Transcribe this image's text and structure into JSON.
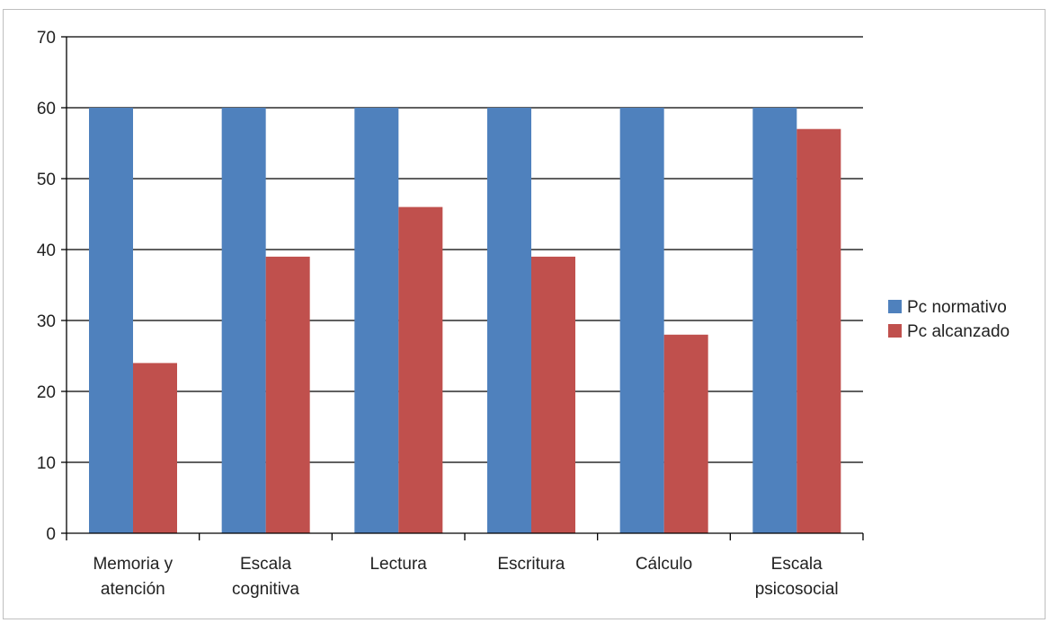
{
  "chart_data": {
    "type": "bar",
    "categories": [
      [
        "Memoria y",
        "atención"
      ],
      [
        "Escala",
        "cognitiva"
      ],
      [
        "Lectura"
      ],
      [
        "Escritura"
      ],
      [
        "Cálculo"
      ],
      [
        "Escala",
        "psicosocial"
      ]
    ],
    "series": [
      {
        "name": "Pc normativo",
        "color": "#4f81bd",
        "values": [
          60,
          60,
          60,
          60,
          60,
          60
        ]
      },
      {
        "name": "Pc alcanzado",
        "color": "#c0504d",
        "values": [
          24,
          39,
          46,
          39,
          28,
          57
        ]
      }
    ],
    "title": "",
    "xlabel": "",
    "ylabel": "",
    "ylim": [
      0,
      70
    ],
    "yticks": [
      0,
      10,
      20,
      30,
      40,
      50,
      60,
      70
    ],
    "grid": true,
    "legend": "right"
  }
}
